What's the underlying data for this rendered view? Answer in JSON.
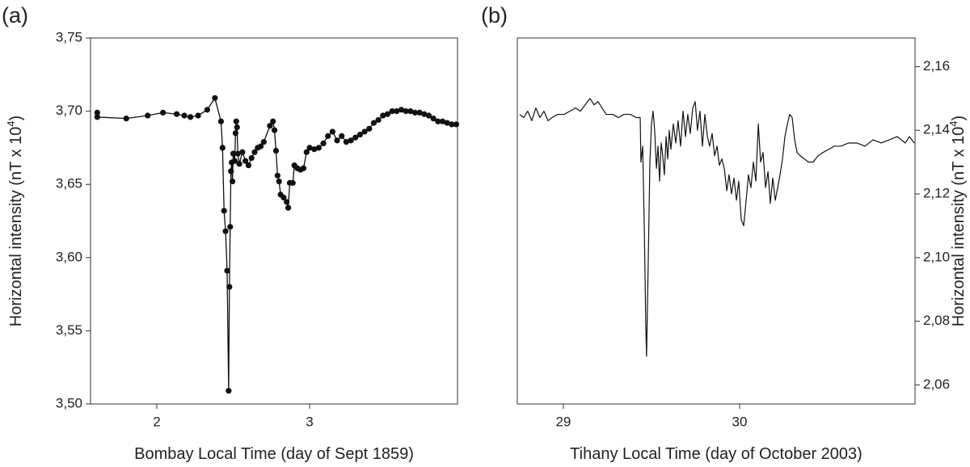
{
  "chart_data": [
    {
      "type": "line",
      "markers": true,
      "panel_label": "(a)",
      "color": "#111111",
      "y_axis_side": "left",
      "xlabel": "Bombay Local Time (day of Sept 1859)",
      "ylabel": {
        "text": "Horizontal intensity (nT x 10",
        "superscript": "4",
        "suffix": ")"
      },
      "xlim": [
        1.566,
        3.968
      ],
      "xticks": [
        2,
        3
      ],
      "ylim": [
        3.5,
        3.75
      ],
      "yticks": [
        {
          "value": 3.5,
          "label": "3,50"
        },
        {
          "value": 3.55,
          "label": "3,55"
        },
        {
          "value": 3.6,
          "label": "3,60"
        },
        {
          "value": 3.65,
          "label": "3,65"
        },
        {
          "value": 3.7,
          "label": "3,70"
        },
        {
          "value": 3.75,
          "label": "3,75"
        }
      ],
      "x": [
        1.61,
        1.61,
        1.8,
        1.94,
        2.04,
        2.13,
        2.18,
        2.22,
        2.27,
        2.33,
        2.38,
        2.42,
        2.43,
        2.44,
        2.45,
        2.46,
        2.47,
        2.475,
        2.48,
        2.485,
        2.49,
        2.495,
        2.5,
        2.51,
        2.515,
        2.52,
        2.525,
        2.53,
        2.54,
        2.56,
        2.58,
        2.6,
        2.62,
        2.64,
        2.66,
        2.68,
        2.7,
        2.74,
        2.76,
        2.77,
        2.78,
        2.79,
        2.8,
        2.81,
        2.83,
        2.85,
        2.86,
        2.87,
        2.89,
        2.9,
        2.92,
        2.94,
        2.96,
        2.98,
        3.0,
        3.03,
        3.06,
        3.09,
        3.12,
        3.15,
        3.18,
        3.21,
        3.24,
        3.27,
        3.3,
        3.33,
        3.36,
        3.39,
        3.42,
        3.45,
        3.48,
        3.51,
        3.54,
        3.57,
        3.6,
        3.63,
        3.66,
        3.69,
        3.72,
        3.75,
        3.78,
        3.81,
        3.84,
        3.87,
        3.9,
        3.93,
        3.96
      ],
      "values": [
        3.699,
        3.696,
        3.695,
        3.697,
        3.699,
        3.698,
        3.697,
        3.696,
        3.697,
        3.701,
        3.709,
        3.693,
        3.675,
        3.632,
        3.618,
        3.591,
        3.509,
        3.58,
        3.621,
        3.659,
        3.665,
        3.652,
        3.671,
        3.666,
        3.685,
        3.693,
        3.689,
        3.671,
        3.664,
        3.672,
        3.666,
        3.663,
        3.668,
        3.672,
        3.675,
        3.676,
        3.679,
        3.69,
        3.693,
        3.687,
        3.673,
        3.656,
        3.652,
        3.643,
        3.641,
        3.638,
        3.634,
        3.651,
        3.651,
        3.663,
        3.661,
        3.66,
        3.661,
        3.672,
        3.675,
        3.674,
        3.675,
        3.678,
        3.683,
        3.686,
        3.68,
        3.683,
        3.679,
        3.68,
        3.682,
        3.684,
        3.686,
        3.688,
        3.692,
        3.694,
        3.697,
        3.698,
        3.7,
        3.7,
        3.701,
        3.7,
        3.7,
        3.699,
        3.699,
        3.698,
        3.697,
        3.695,
        3.693,
        3.693,
        3.692,
        3.691,
        3.691
      ]
    },
    {
      "type": "line",
      "markers": false,
      "panel_label": "(b)",
      "color": "#111111",
      "y_axis_side": "right",
      "xlabel": "Tihany Local Time (day of October 2003)",
      "ylabel": {
        "text": "Horizontal intensity (nT x 10",
        "superscript": "4",
        "suffix": ")"
      },
      "xlim": [
        28.739,
        30.995
      ],
      "xticks": [
        29,
        30
      ],
      "ylim": [
        2.054,
        2.169
      ],
      "yticks": [
        {
          "value": 2.06,
          "label": "2,06"
        },
        {
          "value": 2.08,
          "label": "2,08"
        },
        {
          "value": 2.1,
          "label": "2,10"
        },
        {
          "value": 2.12,
          "label": "2,12"
        },
        {
          "value": 2.14,
          "label": "2,14"
        },
        {
          "value": 2.16,
          "label": "2,16"
        }
      ],
      "x": [
        28.752,
        28.775,
        28.798,
        28.821,
        28.844,
        28.867,
        28.89,
        28.913,
        28.936,
        28.968,
        29.005,
        29.037,
        29.069,
        29.096,
        29.124,
        29.151,
        29.174,
        29.197,
        29.22,
        29.243,
        29.28,
        29.312,
        29.344,
        29.381,
        29.413,
        29.436,
        29.44,
        29.45,
        29.459,
        29.468,
        29.472,
        29.482,
        29.491,
        29.5,
        29.509,
        29.518,
        29.528,
        29.537,
        29.546,
        29.555,
        29.564,
        29.573,
        29.583,
        29.592,
        29.601,
        29.61,
        29.624,
        29.638,
        29.651,
        29.665,
        29.679,
        29.693,
        29.706,
        29.72,
        29.734,
        29.748,
        29.761,
        29.775,
        29.789,
        29.803,
        29.817,
        29.83,
        29.844,
        29.858,
        29.872,
        29.885,
        29.899,
        29.913,
        29.927,
        29.94,
        29.954,
        29.968,
        29.982,
        29.995,
        30.009,
        30.023,
        30.037,
        30.05,
        30.064,
        30.078,
        30.092,
        30.106,
        30.119,
        30.133,
        30.147,
        30.161,
        30.174,
        30.188,
        30.202,
        30.216,
        30.229,
        30.243,
        30.257,
        30.271,
        30.284,
        30.298,
        30.312,
        30.326,
        30.344,
        30.367,
        30.39,
        30.417,
        30.445,
        30.472,
        30.505,
        30.537,
        30.573,
        30.619,
        30.665,
        30.711,
        30.757,
        30.803,
        30.849,
        30.894,
        30.94,
        30.963,
        30.991
      ],
      "values": [
        2.145,
        2.144,
        2.146,
        2.143,
        2.147,
        2.144,
        2.146,
        2.143,
        2.144,
        2.145,
        2.145,
        2.146,
        2.147,
        2.146,
        2.148,
        2.15,
        2.148,
        2.149,
        2.147,
        2.145,
        2.145,
        2.144,
        2.145,
        2.145,
        2.144,
        2.144,
        2.13,
        2.135,
        2.11,
        2.078,
        2.069,
        2.1,
        2.13,
        2.142,
        2.146,
        2.14,
        2.128,
        2.135,
        2.124,
        2.136,
        2.132,
        2.126,
        2.138,
        2.131,
        2.14,
        2.134,
        2.142,
        2.136,
        2.143,
        2.135,
        2.146,
        2.138,
        2.145,
        2.139,
        2.147,
        2.149,
        2.14,
        2.146,
        2.135,
        2.145,
        2.138,
        2.135,
        2.139,
        2.132,
        2.135,
        2.129,
        2.131,
        2.128,
        2.121,
        2.126,
        2.12,
        2.125,
        2.118,
        2.124,
        2.112,
        2.11,
        2.118,
        2.126,
        2.122,
        2.13,
        2.124,
        2.142,
        2.13,
        2.133,
        2.122,
        2.127,
        2.117,
        2.125,
        2.118,
        2.122,
        2.126,
        2.131,
        2.138,
        2.142,
        2.145,
        2.144,
        2.137,
        2.133,
        2.132,
        2.131,
        2.13,
        2.13,
        2.132,
        2.133,
        2.134,
        2.135,
        2.135,
        2.136,
        2.136,
        2.135,
        2.137,
        2.136,
        2.137,
        2.138,
        2.136,
        2.138,
        2.136
      ]
    }
  ]
}
